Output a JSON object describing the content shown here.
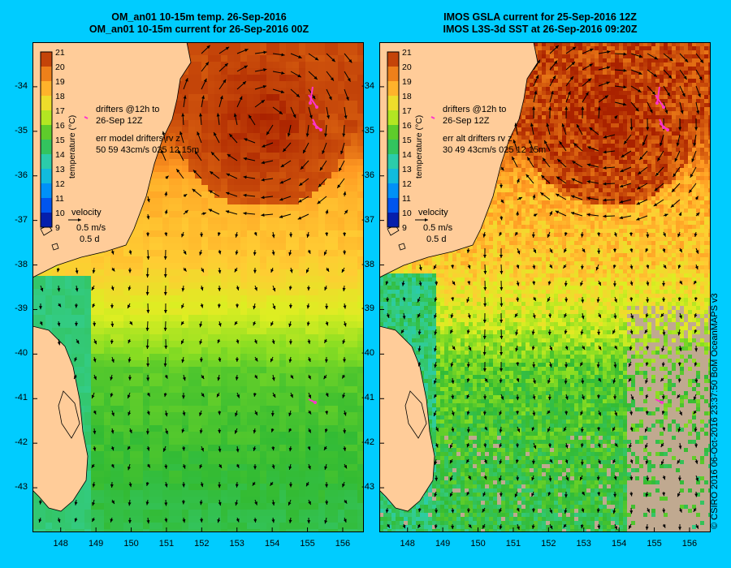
{
  "left_title_line1": "OM_an01 10-15m temp. 26-Sep-2016",
  "left_title_line2": "OM_an01 10-15m current for 26-Sep-2016 00Z",
  "right_title_line1": "IMOS GSLA current for 25-Sep-2016 12Z",
  "right_title_line2": "IMOS L3S-3d SST at 26-Sep-2016 09:20Z",
  "colorbar_title": "temperature (°C)",
  "colorbar_labels": [
    "21",
    "20",
    "19",
    "18",
    "17",
    "16",
    "15",
    "14",
    "13",
    "12",
    "11",
    "10",
    "9"
  ],
  "lat_labels": [
    "-34",
    "-35",
    "-36",
    "-37",
    "-38",
    "-39",
    "-40",
    "-41",
    "-42",
    "-43"
  ],
  "lon_labels": [
    "148",
    "149",
    "150",
    "151",
    "152",
    "153",
    "154",
    "155",
    "156"
  ],
  "left_notes": {
    "drifters": "drifters @12h to",
    "drifters_date": "26-Sep 12Z",
    "err_line1": "err model drifters rv z",
    "err_line2": "50 59 43cm/s 025 12 15m"
  },
  "right_notes": {
    "drifters": "drifters @12h to",
    "drifters_date": "26-Sep 12Z",
    "err_line1": "err alt drifters rv z",
    "err_line2": "30 49 43cm/s 025 12 15m"
  },
  "velocity": {
    "label": "velocity",
    "speed": "0.5 m/s",
    "duration": "0.5 d"
  },
  "credit": "© CSIRO 2016  06-Oct-2016 23:37:50 BoM OceanMAPS v3",
  "colors": {
    "background": "#00ccff",
    "land": "#ffcc99",
    "missing": "#c0a990",
    "drifter": "#ff33cc"
  },
  "chart_data": {
    "type": "heatmap",
    "x_range_lon": [
      147.2,
      156.6
    ],
    "y_range_lat": [
      -44.0,
      -33.0
    ],
    "color_range_c": [
      9,
      21
    ]
  }
}
